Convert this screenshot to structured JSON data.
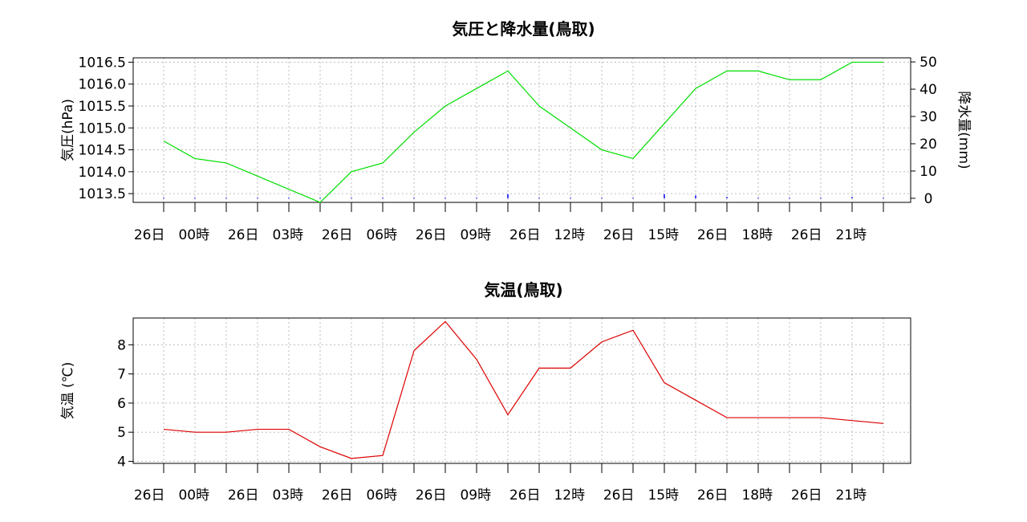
{
  "chart_data": [
    {
      "type": "line",
      "title": "気圧と降水量(鳥取)",
      "ylabel": "気圧(hPa)",
      "y2label": "降水量(mm)",
      "x_tick_labels": [
        "26日　00時",
        "26日　03時",
        "26日　06時",
        "26日　09時",
        "26日　12時",
        "26日　15時",
        "26日　18時",
        "26日　21時"
      ],
      "x": [
        "00時",
        "01時",
        "02時",
        "03時",
        "04時",
        "05時",
        "06時",
        "07時",
        "08時",
        "09時",
        "10時",
        "11時",
        "12時",
        "13時",
        "14時",
        "15時",
        "16時",
        "17時",
        "18時",
        "19時",
        "20時",
        "21時",
        "22時",
        "23時"
      ],
      "ylim": [
        1013.3,
        1016.6
      ],
      "yticks": [
        1013.5,
        1014.0,
        1014.5,
        1015.0,
        1015.5,
        1016.0,
        1016.5
      ],
      "ytick_labels": [
        "1013.5",
        "1014.0",
        "1014.5",
        "1015.0",
        "1015.5",
        "1016.0",
        "1016.5"
      ],
      "y2lim": [
        -1.5,
        51.5
      ],
      "y2ticks": [
        0,
        10,
        20,
        30,
        40,
        50
      ],
      "y2tick_labels": [
        "0",
        "10",
        "20",
        "30",
        "40",
        "50"
      ],
      "grid": true,
      "series": [
        {
          "axis": "left",
          "color": "#00dd00",
          "values": [
            1014.7,
            1014.3,
            1014.2,
            1013.9,
            1013.6,
            1013.3,
            1014.0,
            1014.2,
            1014.9,
            1015.5,
            1015.9,
            1016.3,
            1015.5,
            1015.0,
            1014.5,
            1014.3,
            1015.1,
            1015.9,
            1016.3,
            1016.3,
            1016.1,
            1016.1,
            1016.5,
            1016.5
          ]
        },
        {
          "axis": "right",
          "type": "bar",
          "color": "#0000ff",
          "values": [
            0,
            0,
            0,
            0,
            0,
            0,
            0,
            0,
            0,
            0,
            0,
            1.5,
            0,
            0,
            0,
            0,
            1.5,
            1.0,
            0.5,
            0,
            0,
            0,
            0.5,
            0
          ]
        }
      ]
    },
    {
      "type": "line",
      "title": "気温(鳥取)",
      "ylabel": "気温 (℃)",
      "x_tick_labels": [
        "26日　00時",
        "26日　03時",
        "26日　06時",
        "26日　09時",
        "26日　12時",
        "26日　15時",
        "26日　18時",
        "26日　21時"
      ],
      "x": [
        "00時",
        "01時",
        "02時",
        "03時",
        "04時",
        "05時",
        "06時",
        "07時",
        "08時",
        "09時",
        "10時",
        "11時",
        "12時",
        "13時",
        "14時",
        "15時",
        "16時",
        "17時",
        "18時",
        "19時",
        "20時",
        "21時",
        "22時",
        "23時"
      ],
      "ylim": [
        3.93,
        8.92
      ],
      "yticks": [
        4,
        5,
        6,
        7,
        8
      ],
      "ytick_labels": [
        "4",
        "5",
        "6",
        "7",
        "8"
      ],
      "grid": true,
      "series": [
        {
          "axis": "left",
          "color": "#dd0000",
          "values": [
            5.1,
            5.0,
            5.0,
            5.1,
            5.1,
            4.5,
            4.1,
            4.2,
            7.8,
            8.8,
            7.5,
            5.6,
            7.2,
            7.2,
            8.1,
            8.5,
            6.7,
            6.1,
            5.5,
            5.5,
            5.5,
            5.5,
            5.4,
            5.3
          ]
        }
      ]
    }
  ]
}
